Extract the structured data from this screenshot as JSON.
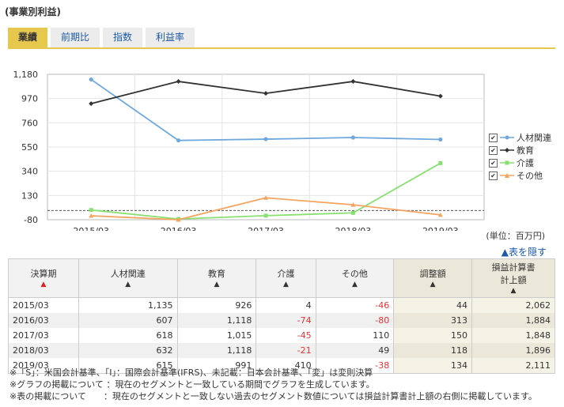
{
  "header": {
    "title": "(事業別利益)"
  },
  "tabs": [
    {
      "label": "業績",
      "active": true
    },
    {
      "label": "前期比",
      "active": false
    },
    {
      "label": "指数",
      "active": false
    },
    {
      "label": "利益率",
      "active": false
    }
  ],
  "chart_data": {
    "type": "line",
    "categories": [
      "2015/03",
      "2016/03",
      "2017/03",
      "2018/03",
      "2019/03"
    ],
    "yticks": [
      "1,180",
      "970",
      "760",
      "550",
      "340",
      "130",
      "-80"
    ],
    "ylim": [
      -80,
      1180
    ],
    "series": [
      {
        "name": "人材関連",
        "color": "#6fa8dc",
        "values": [
          1135,
          607,
          618,
          632,
          615
        ]
      },
      {
        "name": "教育",
        "color": "#333333",
        "values": [
          926,
          1118,
          1015,
          1118,
          991
        ]
      },
      {
        "name": "介護",
        "color": "#88e070",
        "values": [
          4,
          -74,
          -45,
          -21,
          410
        ]
      },
      {
        "name": "その他",
        "color": "#f4a460",
        "values": [
          -46,
          -80,
          110,
          49,
          -38
        ]
      }
    ],
    "zero_line": true,
    "legend_position": "right"
  },
  "unit": "(単位：百万円)",
  "hide_table_label": "▲表を隠す",
  "table": {
    "headers": [
      "決算期",
      "人材関連",
      "教育",
      "介護",
      "その他",
      "調整額",
      "損益計算書\n計上額"
    ],
    "rows": [
      [
        "2015/03",
        "1,135",
        "926",
        "4",
        "-46",
        "44",
        "2,062"
      ],
      [
        "2016/03",
        "607",
        "1,118",
        "-74",
        "-80",
        "313",
        "1,884"
      ],
      [
        "2017/03",
        "618",
        "1,015",
        "-45",
        "110",
        "150",
        "1,848"
      ],
      [
        "2018/03",
        "632",
        "1,118",
        "-21",
        "49",
        "118",
        "1,896"
      ],
      [
        "2019/03",
        "615",
        "991",
        "410",
        "-38",
        "134",
        "2,111"
      ]
    ]
  },
  "notes": [
    "※「S」：米国会計基準、「I」：国際会計基準(IFRS)、未記載：日本会計基準、「変」は変則決算",
    "※グラフの掲載について ：現在のセグメントと一致している期間でグラフを生成しています。",
    "※表の掲載について　　：現在のセグメントと一致しない過去のセグメント数値については損益計算書計上額の右側に掲載しています。"
  ]
}
